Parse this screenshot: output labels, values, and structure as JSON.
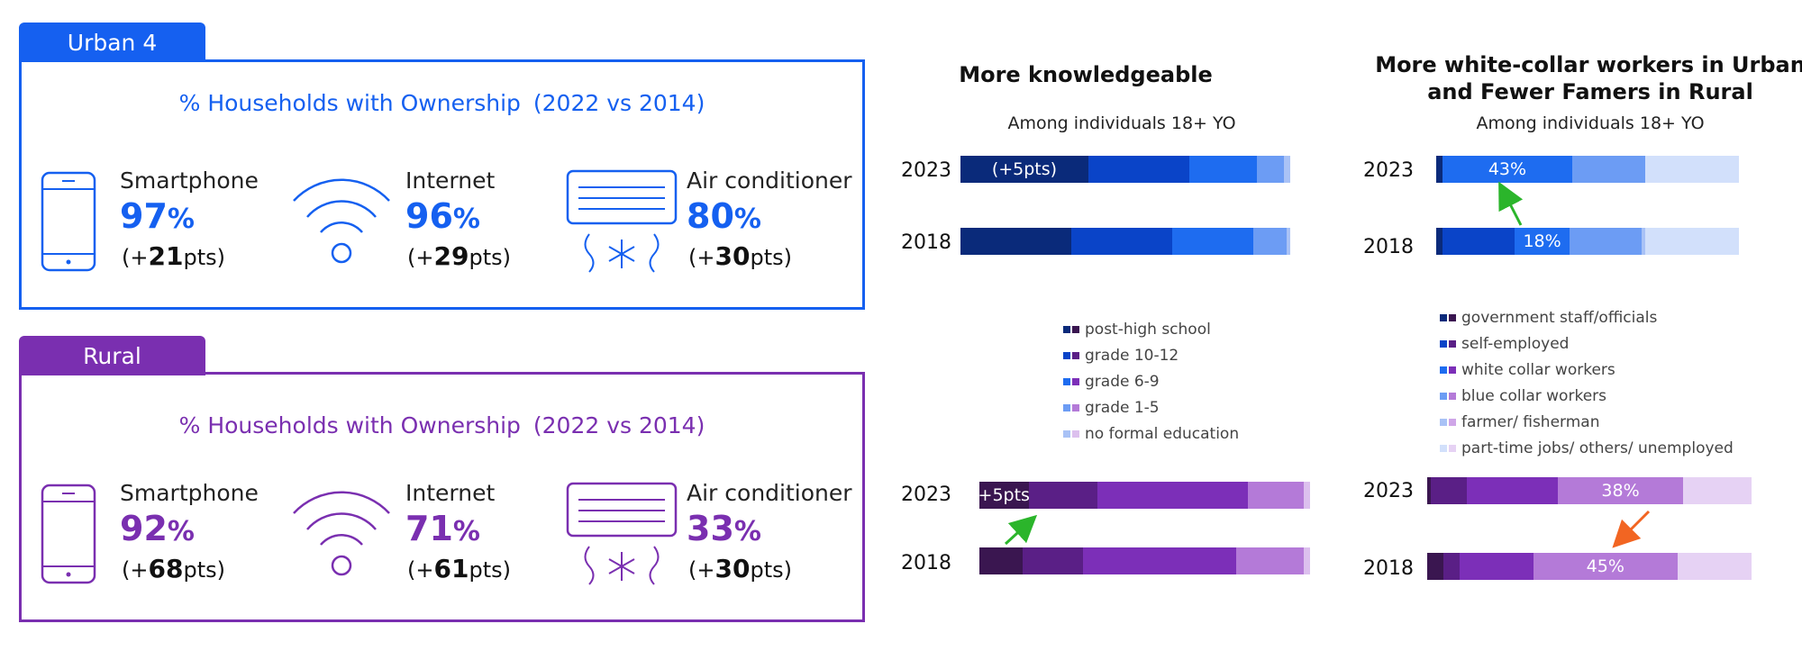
{
  "urban": {
    "tab": "Urban 4",
    "title_main": "% Households with Ownership",
    "title_period": "(2022 vs 2014)",
    "color": "#1560f0",
    "items": [
      {
        "label": "Smartphone",
        "pct": "97",
        "unit": "%",
        "delta_pre": "(+",
        "delta_num": "21",
        "delta_post": "pts)",
        "icon": "smartphone-icon"
      },
      {
        "label": "Internet",
        "pct": "96",
        "unit": "%",
        "delta_pre": "(+",
        "delta_num": "29",
        "delta_post": "pts)",
        "icon": "wifi-icon"
      },
      {
        "label": "Air conditioner",
        "pct": "80",
        "unit": "%",
        "delta_pre": "(+",
        "delta_num": "30",
        "delta_post": "pts)",
        "icon": "air-conditioner-icon"
      }
    ]
  },
  "rural": {
    "tab": "Rural",
    "title_main": "% Households with Ownership",
    "title_period": "(2022 vs 2014)",
    "color": "#7a2fb0",
    "items": [
      {
        "label": "Smartphone",
        "pct": "92",
        "unit": "%",
        "delta_pre": "(+",
        "delta_num": "68",
        "delta_post": "pts)",
        "icon": "smartphone-icon"
      },
      {
        "label": "Internet",
        "pct": "71",
        "unit": "%",
        "delta_pre": "(+",
        "delta_num": "61",
        "delta_post": "pts)",
        "icon": "wifi-icon"
      },
      {
        "label": "Air conditioner",
        "pct": "33",
        "unit": "%",
        "delta_pre": "(+",
        "delta_num": "30",
        "delta_post": "pts)",
        "icon": "air-conditioner-icon"
      }
    ]
  },
  "chart_data": [
    {
      "type": "bar",
      "orientation": "horizontal-stacked",
      "title": "More knowledgeable",
      "subtitle": "Among individuals 18+ YO",
      "legend": {
        "items": [
          "post-high school",
          "grade 10-12",
          "grade 6-9",
          "grade 1-5",
          "no formal education"
        ],
        "urban_colors": [
          "#0a2a7a",
          "#0a44c8",
          "#1e6cf0",
          "#6c9cf4",
          "#a9c2f6"
        ],
        "rural_colors": [
          "#3a1650",
          "#5a1f86",
          "#7c2fb8",
          "#b47ad8",
          "#dcc0ee"
        ]
      },
      "groups": [
        {
          "name": "Urban 4",
          "rows": [
            {
              "year": "2023",
              "values": [
                38,
                30,
                20,
                8,
                2
              ],
              "label_seg": 0,
              "label": "(+5pts)"
            },
            {
              "year": "2018",
              "values": [
                33,
                30,
                24,
                10,
                1
              ],
              "label_seg": -1,
              "label": ""
            }
          ]
        },
        {
          "name": "Rural",
          "rows": [
            {
              "year": "2023",
              "values": [
                15,
                21,
                46,
                17,
                2
              ],
              "label_seg": 0,
              "label": "(+5pts)"
            },
            {
              "year": "2018",
              "values": [
                13,
                18,
                46,
                20,
                2
              ],
              "label_seg": -1,
              "label": ""
            }
          ]
        }
      ]
    },
    {
      "type": "bar",
      "orientation": "horizontal-stacked",
      "title": "More white-collar workers in Urban and Fewer Famers in Rural",
      "title_lines": [
        "More white-collar workers in Urban",
        "and Fewer Famers in Rural"
      ],
      "subtitle": "Among individuals 18+ YO",
      "legend": {
        "items": [
          "government staff/officials",
          "self-employed",
          "white collar workers",
          "blue collar workers",
          "farmer/ fisherman",
          "part-time jobs/ others/ unemployed"
        ],
        "urban_colors": [
          "#0a2a7a",
          "#0a44c8",
          "#1e6cf0",
          "#6c9cf4",
          "#a9c2f6",
          "#d2e0fb"
        ],
        "rural_colors": [
          "#3a1650",
          "#5a1f86",
          "#7c2fb8",
          "#b47ad8",
          "#cfa6e8",
          "#e6d2f4"
        ]
      },
      "groups": [
        {
          "name": "Urban 4",
          "rows": [
            {
              "year": "2023",
              "values": [
                2,
                0,
                43,
                24,
                0,
                31
              ],
              "label_seg": 2,
              "label": "43%"
            },
            {
              "year": "2018",
              "values": [
                2,
                24,
                18,
                24,
                1,
                31
              ],
              "label_seg": 2,
              "label": "18%"
            }
          ]
        },
        {
          "name": "Rural",
          "rows": [
            {
              "year": "2023",
              "values": [
                1,
                11,
                28,
                38,
                0,
                21
              ],
              "label_seg": 3,
              "label": "38%"
            },
            {
              "year": "2018",
              "values": [
                5,
                5,
                23,
                45,
                0,
                23
              ],
              "label_seg": 3,
              "label": "45%"
            }
          ]
        }
      ]
    }
  ]
}
